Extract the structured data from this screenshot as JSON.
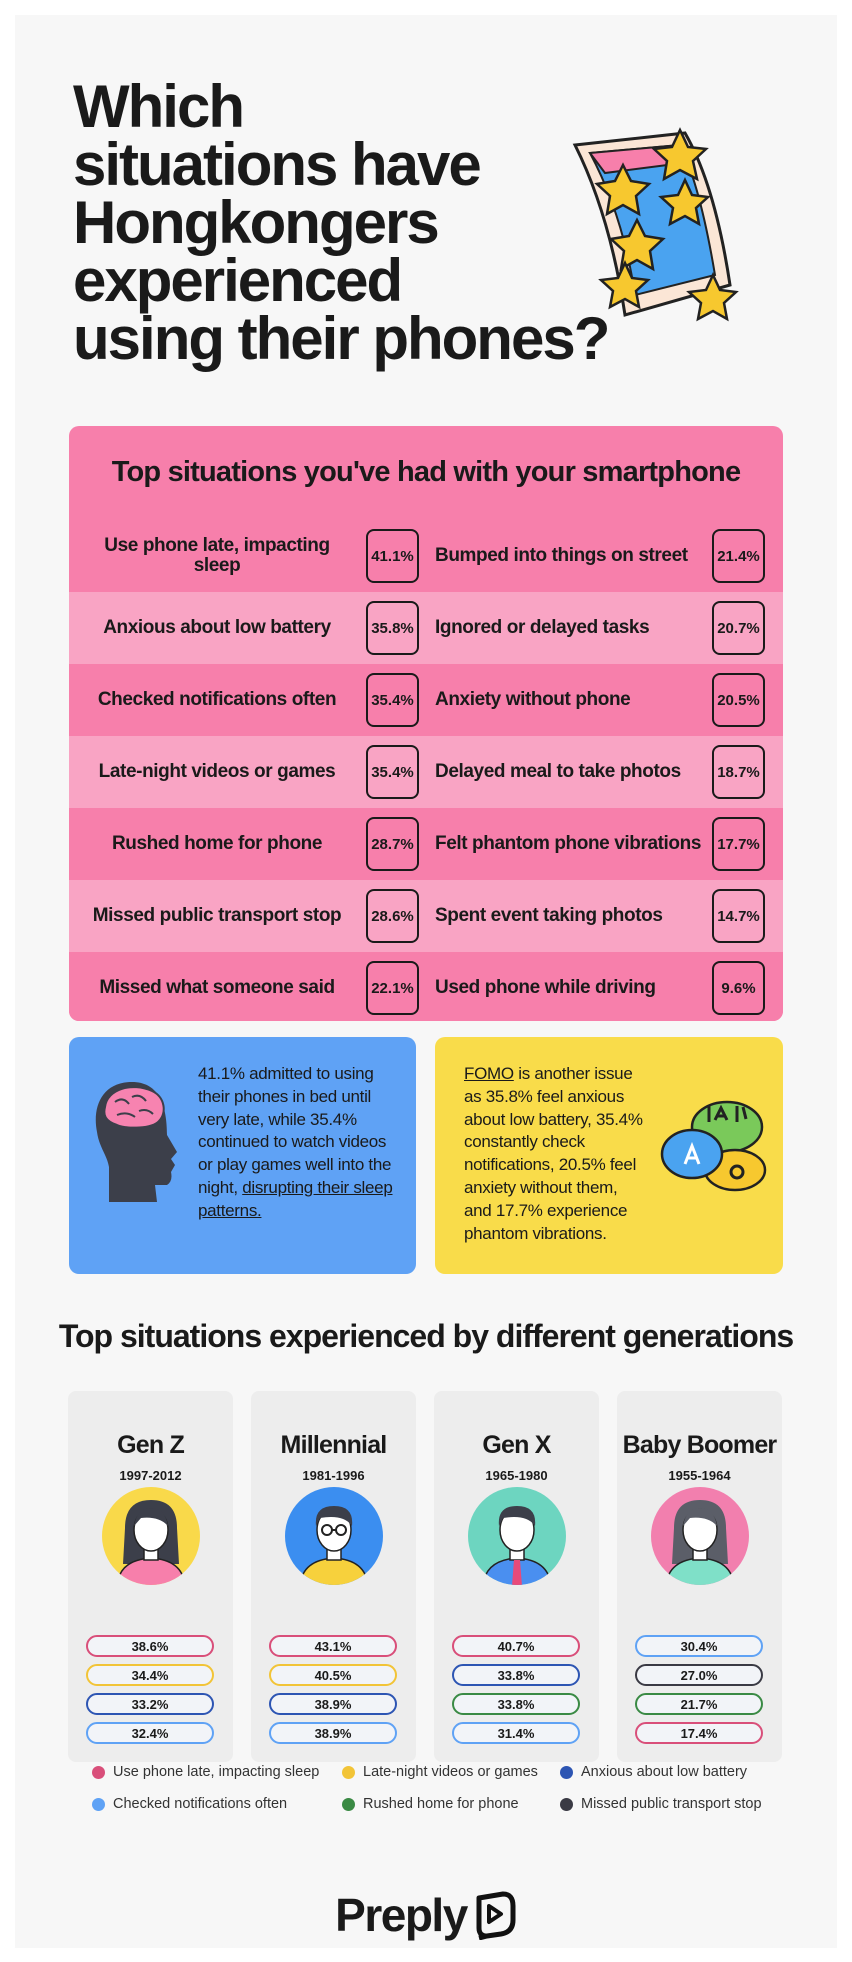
{
  "header": {
    "title_lines": [
      "Which",
      "situations have",
      "Hongkongers",
      "experienced",
      "using their phones?"
    ]
  },
  "table": {
    "title": "Top situations you've had with your smartphone",
    "rows": [
      [
        "Use phone late, impacting sleep",
        "41.1%",
        "Bumped into things on street",
        "21.4%"
      ],
      [
        "Anxious about low battery",
        "35.8%",
        "Ignored or delayed tasks",
        "20.7%"
      ],
      [
        "Checked notifications often",
        "35.4%",
        "Anxiety without phone",
        "20.5%"
      ],
      [
        "Late-night videos or games",
        "35.4%",
        "Delayed meal to take photos",
        "18.7%"
      ],
      [
        "Rushed home for phone",
        "28.7%",
        "Felt phantom phone vibrations",
        "17.7%"
      ],
      [
        "Missed public transport stop",
        "28.6%",
        "Spent event taking photos",
        "14.7%"
      ],
      [
        "Missed what someone said",
        "22.1%",
        "Used phone while driving",
        "9.6%"
      ]
    ]
  },
  "notes": {
    "sleep": {
      "text": "41.1% admitted to using their phones in bed until very late, while 35.4% continued to watch videos or play games well into the night, ",
      "link": "disrupting their sleep patterns."
    },
    "fomo": {
      "link": "FOMO",
      "text": " is another issue as 35.8% feel anxious about low battery, 35.4% constantly check notifications, 20.5% feel anxiety without them, and 17.7% experience phantom vibrations."
    }
  },
  "generations": {
    "title": "Top situations experienced by different generations",
    "cards": [
      {
        "name": "Gen Z",
        "years": "1997-2012",
        "items": [
          {
            "value": "38.6%",
            "color": "#d94f7a"
          },
          {
            "value": "34.4%",
            "color": "#f2c437"
          },
          {
            "value": "33.2%",
            "color": "#2d55b3"
          },
          {
            "value": "32.4%",
            "color": "#5fa2f5"
          }
        ]
      },
      {
        "name": "Millennial",
        "years": "1981-1996",
        "items": [
          {
            "value": "43.1%",
            "color": "#d94f7a"
          },
          {
            "value": "40.5%",
            "color": "#f2c437"
          },
          {
            "value": "38.9%",
            "color": "#2d55b3"
          },
          {
            "value": "38.9%",
            "color": "#5fa2f5"
          }
        ]
      },
      {
        "name": "Gen X",
        "years": "1965-1980",
        "items": [
          {
            "value": "40.7%",
            "color": "#d94f7a"
          },
          {
            "value": "33.8%",
            "color": "#2d55b3"
          },
          {
            "value": "33.8%",
            "color": "#3a8a44"
          },
          {
            "value": "31.4%",
            "color": "#5fa2f5"
          }
        ]
      },
      {
        "name": "Baby Boomer",
        "years": "1955-1964",
        "items": [
          {
            "value": "30.4%",
            "color": "#5fa2f5"
          },
          {
            "value": "27.0%",
            "color": "#3a3a44"
          },
          {
            "value": "21.7%",
            "color": "#3a8a44"
          },
          {
            "value": "17.4%",
            "color": "#d94f7a"
          }
        ]
      }
    ],
    "legend": [
      {
        "label": "Use phone late, impacting sleep",
        "color": "#d94f7a"
      },
      {
        "label": "Late-night videos or games",
        "color": "#f2c437"
      },
      {
        "label": "Anxious about low battery",
        "color": "#2d55b3"
      },
      {
        "label": "Checked notifications often",
        "color": "#5fa2f5"
      },
      {
        "label": "Rushed home for phone",
        "color": "#3a8a44"
      },
      {
        "label": "Missed public transport stop",
        "color": "#3a3a44"
      }
    ]
  },
  "footer": {
    "brand": "Preply"
  }
}
